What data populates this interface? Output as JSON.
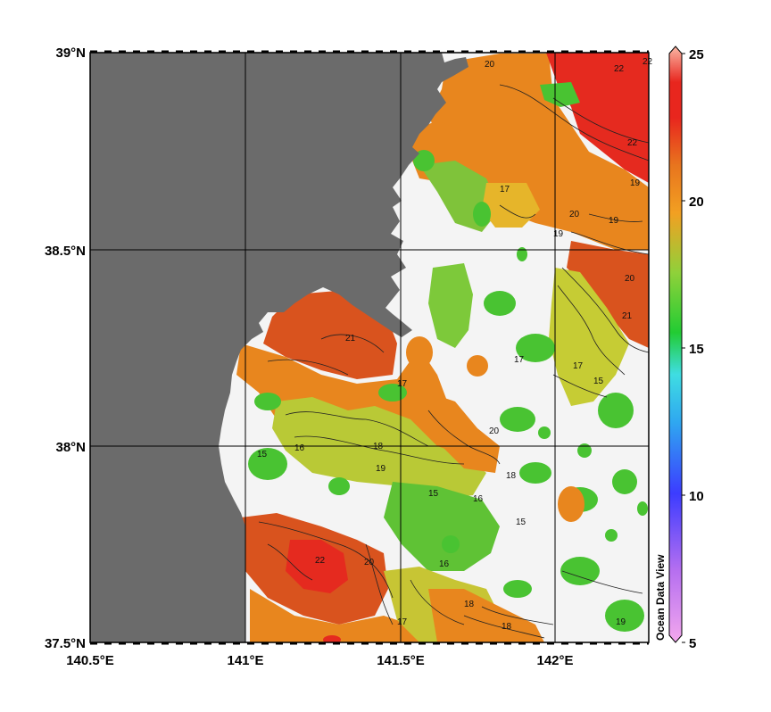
{
  "map": {
    "lat_ticks": [
      "39°N",
      "38.5°N",
      "38°N",
      "37.5°N"
    ],
    "lon_ticks": [
      "140.5°E",
      "141°E",
      "141.5°E",
      "142°E"
    ],
    "watermark": "Ocean Data View",
    "extent": {
      "lon": [
        140.5,
        142.3
      ],
      "lat": [
        37.5,
        39.0
      ]
    }
  },
  "colorbar": {
    "min": 5,
    "max": 25,
    "tick_labels": [
      "25",
      "20",
      "15",
      "10",
      "5"
    ],
    "colors": [
      "#f3a8ee",
      "#3c3cff",
      "#3fdde2",
      "#22cc33",
      "#f2a022",
      "#e8261e",
      "#fab7a5"
    ]
  },
  "contour_labels": [
    "20",
    "22",
    "22",
    "22",
    "19",
    "19",
    "20",
    "19",
    "20",
    "21",
    "21",
    "17",
    "17",
    "15",
    "17",
    "15",
    "16",
    "18",
    "20",
    "19",
    "15",
    "16",
    "18",
    "15",
    "22",
    "20",
    "16",
    "17",
    "18",
    "18",
    "19",
    "17"
  ],
  "colors": {
    "land": "#6b6b6b",
    "no_data": "#f4f4f4",
    "red": "#e52a1f",
    "red_orange": "#d9531e",
    "orange": "#e8861e",
    "yellow": "#e7c82f",
    "light_green": "#9ccc3a",
    "green": "#49c332"
  }
}
